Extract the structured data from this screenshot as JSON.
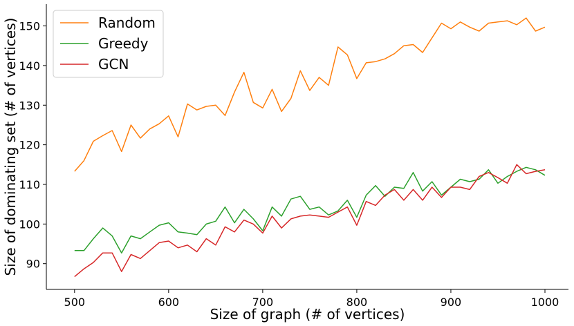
{
  "chart_data": {
    "type": "line",
    "xlabel": "Size of graph (# of vertices)",
    "ylabel": "Size of dominating set (# of vertices)",
    "xlim": [
      470,
      1025
    ],
    "ylim": [
      83.5,
      155.5
    ],
    "xticks": [
      500,
      600,
      700,
      800,
      900,
      1000
    ],
    "yticks": [
      90,
      100,
      110,
      120,
      130,
      140,
      150
    ],
    "grid": false,
    "legend_position": "top-left",
    "x": [
      500,
      510,
      520,
      530,
      540,
      550,
      560,
      570,
      580,
      590,
      600,
      610,
      620,
      630,
      640,
      650,
      660,
      670,
      680,
      690,
      700,
      710,
      720,
      730,
      740,
      750,
      760,
      770,
      780,
      790,
      800,
      810,
      820,
      830,
      840,
      850,
      860,
      870,
      880,
      890,
      900,
      910,
      920,
      930,
      940,
      950,
      960,
      970,
      980,
      990,
      1000
    ],
    "series": [
      {
        "name": "Random",
        "color": "#ff7f0e",
        "values": [
          113.3,
          116.0,
          120.9,
          122.3,
          123.6,
          118.3,
          125.0,
          121.7,
          124.0,
          125.3,
          127.3,
          122.0,
          130.3,
          128.8,
          129.7,
          130.0,
          127.4,
          133.3,
          138.3,
          130.7,
          129.3,
          134.0,
          128.4,
          131.7,
          138.7,
          133.7,
          137.0,
          135.0,
          144.7,
          142.7,
          136.7,
          140.7,
          141.0,
          141.7,
          143.0,
          145.0,
          145.3,
          143.3,
          147.0,
          150.7,
          149.3,
          151.0,
          149.7,
          148.7,
          150.7,
          151.0,
          151.3,
          150.3,
          152.0,
          148.7,
          149.7
        ]
      },
      {
        "name": "Greedy",
        "color": "#2ca02c",
        "values": [
          93.3,
          93.3,
          96.3,
          99.0,
          97.0,
          92.7,
          97.0,
          96.3,
          98.0,
          99.7,
          100.3,
          98.0,
          97.7,
          97.3,
          100.0,
          100.7,
          104.3,
          100.3,
          103.7,
          101.3,
          98.3,
          104.3,
          102.0,
          106.3,
          107.0,
          103.7,
          104.3,
          102.3,
          103.3,
          106.0,
          101.7,
          107.3,
          109.7,
          107.0,
          109.3,
          109.0,
          113.0,
          108.3,
          110.7,
          107.3,
          109.3,
          111.3,
          110.7,
          111.3,
          113.7,
          110.3,
          112.0,
          113.3,
          114.3,
          113.7,
          112.3
        ]
      },
      {
        "name": "GCN",
        "color": "#d62728",
        "values": [
          86.7,
          88.7,
          90.3,
          92.7,
          92.7,
          88.0,
          92.3,
          91.3,
          93.3,
          95.3,
          95.7,
          94.0,
          94.7,
          93.0,
          96.3,
          94.7,
          99.3,
          98.0,
          101.0,
          100.0,
          97.7,
          102.0,
          99.0,
          101.3,
          102.0,
          102.3,
          102.0,
          101.7,
          103.0,
          104.3,
          99.7,
          105.7,
          104.7,
          107.3,
          108.7,
          106.0,
          108.7,
          106.0,
          109.3,
          106.7,
          109.3,
          109.3,
          108.7,
          112.0,
          113.0,
          111.7,
          110.3,
          115.0,
          112.7,
          113.3,
          113.7
        ]
      }
    ]
  }
}
